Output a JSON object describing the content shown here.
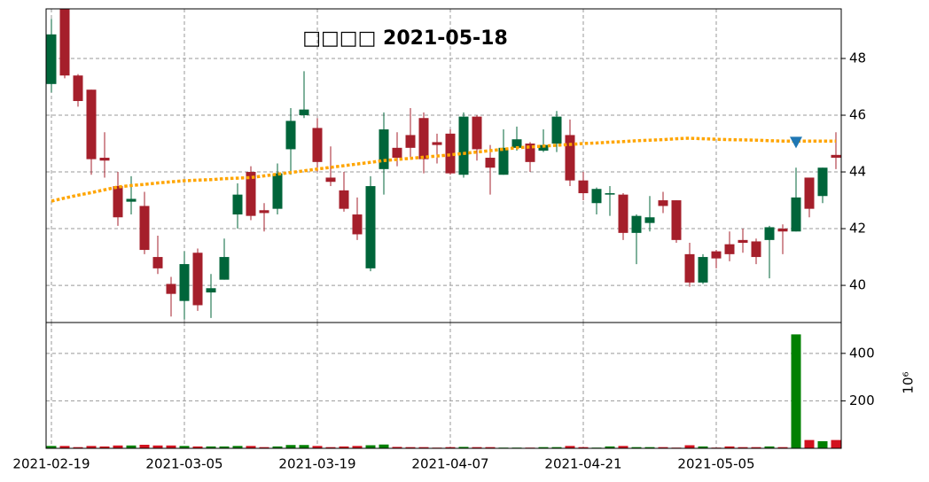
{
  "chart_data": [
    {
      "type": "candlestick",
      "title": "□□□□ 2021-05-18",
      "categories": [
        "2021-02-19",
        null,
        null,
        null,
        null,
        null,
        null,
        null,
        null,
        null,
        "2021-03-05",
        null,
        null,
        null,
        null,
        null,
        null,
        null,
        null,
        null,
        "2021-03-19",
        null,
        null,
        null,
        null,
        null,
        null,
        null,
        null,
        null,
        "2021-04-07",
        null,
        null,
        null,
        null,
        null,
        null,
        null,
        null,
        null,
        "2021-04-21",
        null,
        null,
        null,
        null,
        null,
        null,
        null,
        null,
        null,
        "2021-05-05",
        null,
        null,
        null,
        null,
        null,
        null,
        null,
        null,
        null
      ],
      "open": [
        47.1,
        49.8,
        47.4,
        46.9,
        44.5,
        43.5,
        42.95,
        42.8,
        41.0,
        40.05,
        39.45,
        41.15,
        39.75,
        40.2,
        42.5,
        44.0,
        42.65,
        42.7,
        44.8,
        46.0,
        45.55,
        43.8,
        43.35,
        42.5,
        40.6,
        44.1,
        44.85,
        45.3,
        45.9,
        45.05,
        45.35,
        43.9,
        45.95,
        44.5,
        43.9,
        44.85,
        45.0,
        44.75,
        45.0,
        45.3,
        43.7,
        42.9,
        43.2,
        43.2,
        41.85,
        42.2,
        43.0,
        43.0,
        41.1,
        40.1,
        41.2,
        41.45,
        41.6,
        41.55,
        41.6,
        42.0,
        41.9,
        43.8,
        43.15,
        44.6
      ],
      "high": [
        49.4,
        50.0,
        47.45,
        46.9,
        45.4,
        44.0,
        43.85,
        43.3,
        41.75,
        40.3,
        41.2,
        41.3,
        40.4,
        41.65,
        43.6,
        44.2,
        42.9,
        44.3,
        46.25,
        47.55,
        45.9,
        44.9,
        44.0,
        43.1,
        43.85,
        46.1,
        45.4,
        46.25,
        46.1,
        45.35,
        45.5,
        46.1,
        46.0,
        44.95,
        45.5,
        45.6,
        45.05,
        45.5,
        46.15,
        45.85,
        44.0,
        43.45,
        43.5,
        43.25,
        42.5,
        43.15,
        43.3,
        43.0,
        41.5,
        41.1,
        41.25,
        41.9,
        42.0,
        41.65,
        42.1,
        42.15,
        44.15,
        43.8,
        44.15,
        45.4
      ],
      "low": [
        46.8,
        47.3,
        46.3,
        43.9,
        43.8,
        42.1,
        42.5,
        41.1,
        40.4,
        38.9,
        38.8,
        39.1,
        38.85,
        40.2,
        42.0,
        42.3,
        41.9,
        42.5,
        43.9,
        45.9,
        44.0,
        43.5,
        42.6,
        41.6,
        40.5,
        43.2,
        44.2,
        44.5,
        43.95,
        44.3,
        43.9,
        43.8,
        44.4,
        43.2,
        43.9,
        44.75,
        44.0,
        44.7,
        44.7,
        43.5,
        43.0,
        42.5,
        42.45,
        41.6,
        40.75,
        41.9,
        42.55,
        41.5,
        39.95,
        40.05,
        40.6,
        40.85,
        41.15,
        40.75,
        40.25,
        41.1,
        41.9,
        42.4,
        42.9,
        44.1
      ],
      "close": [
        48.85,
        47.4,
        46.5,
        44.45,
        44.4,
        42.4,
        43.05,
        41.25,
        40.6,
        39.7,
        40.75,
        39.3,
        39.9,
        41.0,
        43.2,
        42.45,
        42.55,
        43.95,
        45.8,
        46.2,
        44.35,
        43.65,
        42.7,
        41.8,
        43.5,
        45.5,
        44.5,
        44.85,
        44.45,
        44.95,
        43.95,
        45.95,
        44.8,
        44.15,
        44.85,
        45.15,
        44.35,
        44.95,
        45.95,
        43.7,
        43.25,
        43.4,
        43.25,
        41.85,
        42.45,
        42.4,
        42.8,
        41.6,
        40.1,
        41.0,
        40.95,
        41.1,
        41.5,
        41.0,
        42.05,
        41.9,
        43.1,
        42.7,
        44.15,
        44.5
      ],
      "up_color": "#00653a",
      "down_color": "#a51f2b",
      "moving_average": {
        "color": "#ffa500",
        "values": [
          42.97,
          43.08,
          43.18,
          43.27,
          43.37,
          43.47,
          43.52,
          43.56,
          43.61,
          43.65,
          43.69,
          43.71,
          43.73,
          43.76,
          43.78,
          43.8,
          43.86,
          43.92,
          43.98,
          44.04,
          44.1,
          44.16,
          44.22,
          44.28,
          44.34,
          44.4,
          44.44,
          44.48,
          44.52,
          44.56,
          44.6,
          44.65,
          44.7,
          44.75,
          44.8,
          44.85,
          44.88,
          44.91,
          44.94,
          44.97,
          45.0,
          45.02,
          45.05,
          45.07,
          45.1,
          45.12,
          45.14,
          45.17,
          45.19,
          45.17,
          45.15,
          45.14,
          45.13,
          45.12,
          45.1,
          45.09,
          45.09,
          45.09,
          45.09,
          45.09
        ]
      },
      "markers": {
        "color": "#1f77b4",
        "values": [
          null,
          null,
          null,
          null,
          null,
          null,
          null,
          null,
          null,
          null,
          null,
          null,
          null,
          null,
          null,
          null,
          null,
          null,
          null,
          null,
          null,
          null,
          null,
          null,
          null,
          null,
          null,
          null,
          null,
          null,
          null,
          null,
          null,
          null,
          null,
          null,
          null,
          null,
          null,
          null,
          null,
          null,
          null,
          null,
          null,
          null,
          null,
          null,
          null,
          null,
          null,
          null,
          null,
          null,
          null,
          null,
          45.05,
          null,
          null,
          null
        ]
      },
      "ylim": [
        38.69,
        49.75
      ],
      "yticks": [
        40,
        42,
        44,
        46,
        48
      ],
      "grid": true
    },
    {
      "type": "bar",
      "offset_label": "10⁶",
      "values": [
        10,
        10,
        5,
        10,
        8,
        12,
        12,
        15,
        12,
        12,
        10,
        8,
        8,
        8,
        10,
        10,
        5,
        8,
        14,
        14,
        10,
        5,
        8,
        10,
        13,
        16,
        6,
        5,
        5,
        3,
        5,
        6,
        5,
        5,
        3,
        3,
        3,
        5,
        5,
        10,
        5,
        3,
        8,
        10,
        5,
        5,
        5,
        3,
        13,
        8,
        3,
        8,
        5,
        5,
        8,
        5,
        480,
        35,
        30,
        35
      ],
      "up_color": "#008000",
      "down_color": "#d2111e",
      "ylim": [
        0,
        530
      ],
      "yticks": [
        200,
        400
      ],
      "grid": true
    }
  ]
}
